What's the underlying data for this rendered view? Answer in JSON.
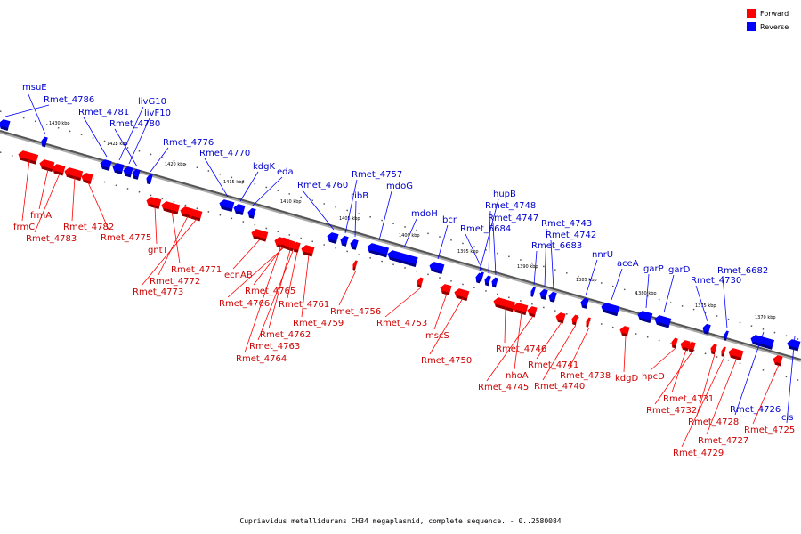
{
  "legend": {
    "forward_label": "Forward",
    "reverse_label": "Reverse",
    "forward_color": "#ff0000",
    "reverse_color": "#0000ff"
  },
  "caption": "Cupriavidus metallidurans CH34 megaplasmid, complete sequence. - 0..2580084",
  "axis": {
    "kbp_labels": [
      "1430 kbp",
      "1425 kbp",
      "1420 kbp",
      "1415 kbp",
      "1410 kbp",
      "1405 kbp",
      "1400 kbp",
      "1395 kbp",
      "1390 kbp",
      "1385 kbp",
      "1380 kbp",
      "1375 kbp",
      "1370 kbp"
    ]
  },
  "reverse_genes": [
    "msuE",
    "Rmet_4786",
    "Rmet_4781",
    "livG10",
    "livF10",
    "Rmet_4780",
    "Rmet_4776",
    "Rmet_4770",
    "kdgK",
    "eda",
    "Rmet_4760",
    "Rmet_4757",
    "ribB",
    "mdoG",
    "mdoH",
    "bcr",
    "hupB",
    "Rmet_4748",
    "Rmet_4747",
    "Rmet_6684",
    "Rmet_4743",
    "Rmet_4742",
    "Rmet_6683",
    "nnrU",
    "aceA",
    "garP",
    "garD",
    "Rmet_6682",
    "Rmet_4730",
    "Rmet_4726",
    "cls"
  ],
  "forward_genes": [
    "frmA",
    "frmC",
    "Rmet_4783",
    "Rmet_4782",
    "Rmet_4775",
    "gntT",
    "Rmet_4771",
    "Rmet_4772",
    "Rmet_4773",
    "ecnAB",
    "Rmet_4765",
    "Rmet_4766",
    "Rmet_4761",
    "Rmet_4762",
    "Rmet_4759",
    "Rmet_4763",
    "Rmet_4764",
    "Rmet_4756",
    "Rmet_4753",
    "mscS",
    "Rmet_4750",
    "Rmet_4746",
    "nhoA",
    "Rmet_4745",
    "Rmet_4741",
    "Rmet_4738",
    "Rmet_4740",
    "kdgD",
    "hpcD",
    "Rmet_4731",
    "Rmet_4732",
    "Rmet_4728",
    "Rmet_4727",
    "Rmet_4729",
    "Rmet_4725"
  ]
}
